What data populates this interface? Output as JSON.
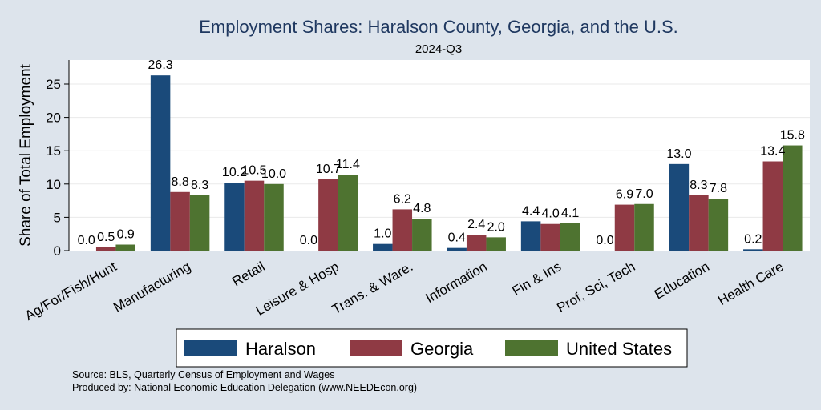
{
  "chart_data": {
    "type": "bar",
    "title": "Employment Shares: Haralson County, Georgia, and the U.S.",
    "subtitle": "2024-Q3",
    "xlabel": "",
    "ylabel": "Share of Total Employment",
    "ylim": [
      0,
      28
    ],
    "yticks": [
      0,
      5,
      10,
      15,
      20,
      25
    ],
    "grid": true,
    "legend_position": "bottom",
    "categories": [
      "Ag/For/Fish/Hunt",
      "Manufacturing",
      "Retail",
      "Leisure & Hosp",
      "Trans. & Ware.",
      "Information",
      "Fin & Ins",
      "Prof, Sci, Tech",
      "Education",
      "Health Care"
    ],
    "series": [
      {
        "name": "Haralson",
        "color": "#1a4a7a",
        "values": [
          0.0,
          26.3,
          10.2,
          0.0,
          1.0,
          0.4,
          4.4,
          0.0,
          13.0,
          0.2
        ],
        "labels": [
          "0.0",
          "26.3",
          "10.2",
          "0.0",
          "1.0",
          "0.4",
          "4.4",
          "0.0",
          "13.0",
          "0.2"
        ]
      },
      {
        "name": "Georgia",
        "color": "#8f3a44",
        "values": [
          0.5,
          8.8,
          10.5,
          10.7,
          6.2,
          2.4,
          4.0,
          6.9,
          8.3,
          13.4
        ],
        "labels": [
          "0.5",
          "8.8",
          "10.5",
          "10.7",
          "6.2",
          "2.4",
          "4.0",
          "6.9",
          "8.3",
          "13.4"
        ]
      },
      {
        "name": "United States",
        "color": "#4e7330",
        "values": [
          0.9,
          8.3,
          10.0,
          11.4,
          4.8,
          2.0,
          4.1,
          7.0,
          7.8,
          15.8
        ],
        "labels": [
          "0.9",
          "8.3",
          "10.0",
          "11.4",
          "4.8",
          "2.0",
          "4.1",
          "7.0",
          "7.8",
          "15.8"
        ]
      }
    ],
    "notes": [
      "Source: BLS, Quarterly Census of Employment and Wages",
      "Produced by: National Economic Education Delegation (www.NEEDEcon.org)"
    ]
  }
}
